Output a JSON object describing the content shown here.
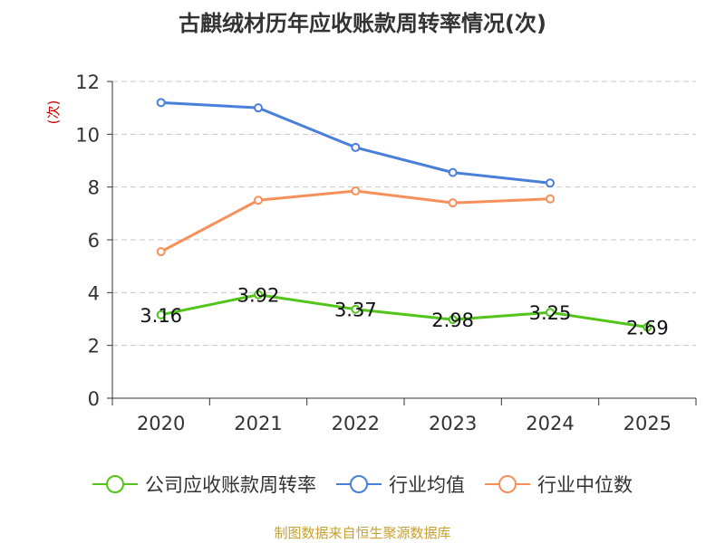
{
  "chart_data": {
    "type": "line",
    "title": "古麒绒材历年应收账款周转率情况(次)",
    "ylabel": "(次)",
    "xlabel": "",
    "categories": [
      "2020",
      "2021",
      "2022",
      "2023",
      "2024",
      "2025"
    ],
    "ylim": [
      0,
      12
    ],
    "yticks": [
      0,
      2,
      4,
      6,
      8,
      10,
      12
    ],
    "grid": true,
    "legend_position": "bottom",
    "series": [
      {
        "name": "公司应收账款周转率",
        "color": "#52c41a",
        "values": [
          3.16,
          3.92,
          3.37,
          2.98,
          3.25,
          2.69
        ],
        "labels": [
          "3.16",
          "3.92",
          "3.37",
          "2.98",
          "3.25",
          "2.69"
        ]
      },
      {
        "name": "行业均值",
        "color": "#4a7fd9",
        "values": [
          11.2,
          11.0,
          9.5,
          8.55,
          8.15,
          null
        ]
      },
      {
        "name": "行业中位数",
        "color": "#f5905a",
        "values": [
          5.55,
          7.5,
          7.85,
          7.4,
          7.55,
          null
        ]
      }
    ]
  },
  "source_note": "制图数据来自恒生聚源数据库"
}
